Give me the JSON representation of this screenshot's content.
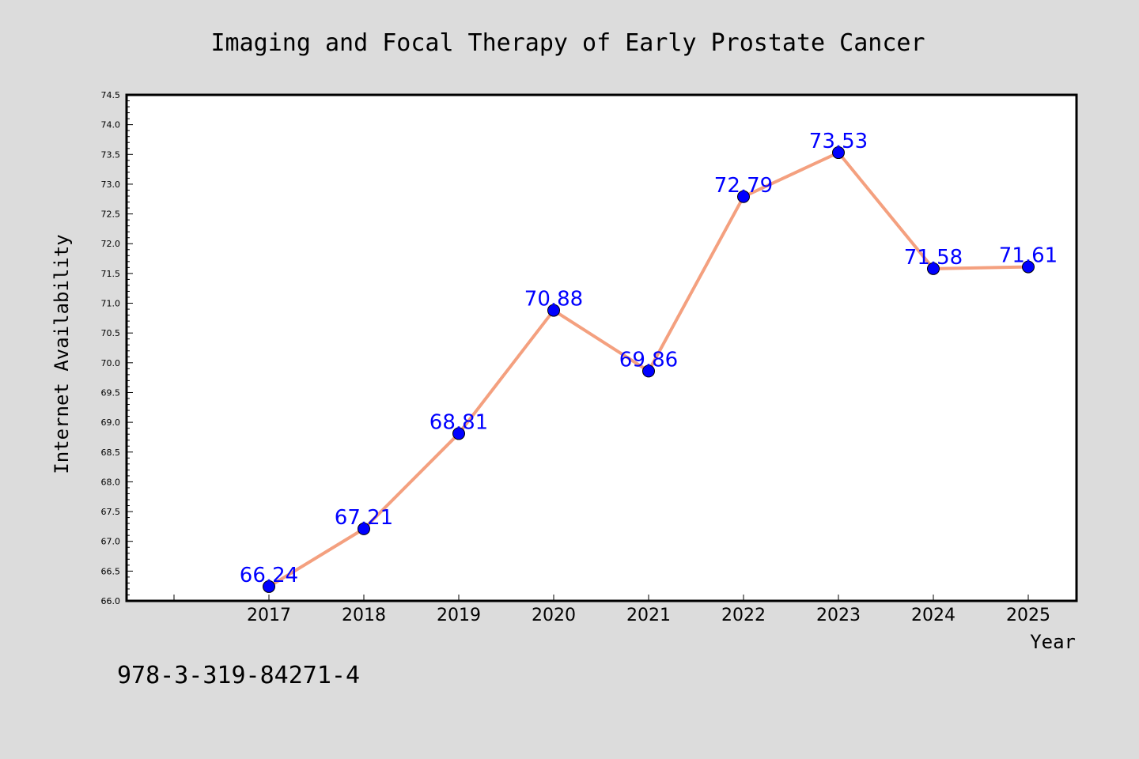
{
  "chart_data": {
    "type": "line",
    "title": "Imaging and Focal Therapy of Early Prostate Cancer",
    "xlabel": "Year",
    "ylabel": "Internet Availability",
    "x": [
      "2017",
      "2018",
      "2019",
      "2020",
      "2021",
      "2022",
      "2023",
      "2024",
      "2025"
    ],
    "series": [
      {
        "values": [
          66.24,
          67.21,
          68.81,
          70.88,
          69.86,
          72.79,
          73.53,
          71.58,
          71.61
        ],
        "labels": [
          "66.24",
          "67.21",
          "68.81",
          "70.88",
          "69.86",
          "72.79",
          "73.53",
          "71.58",
          "71.61"
        ],
        "line_color": "#f4a07f",
        "marker_color": "#0000ff"
      }
    ],
    "ylim": [
      66.0,
      74.5
    ],
    "yticks": [
      "66.0",
      "66.5",
      "67.0",
      "67.5",
      "68.0",
      "68.5",
      "69.0",
      "69.5",
      "70.0",
      "70.5",
      "71.0",
      "71.5",
      "72.0",
      "72.5",
      "73.0",
      "73.5",
      "74.0",
      "74.5"
    ],
    "grid": false,
    "legend": "none"
  },
  "footer_text": "978-3-319-84271-4",
  "colors": {
    "background": "#dcdcdc",
    "plot_bg": "#ffffff",
    "label_color": "#0000ff"
  }
}
